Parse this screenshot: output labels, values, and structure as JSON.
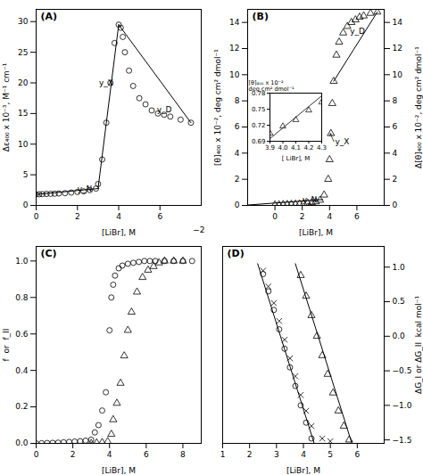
{
  "chart_data": [
    {
      "type": "scatter",
      "title": "(A)",
      "xlabel": "[LiBr], M",
      "ylabel": "Δε₄₀₀ x 10⁻³, M⁻¹ cm⁻¹",
      "xlim": [
        0,
        8
      ],
      "ylim": [
        0,
        32
      ],
      "xticks": [
        0,
        2,
        4,
        6
      ],
      "yticks": [
        0,
        5,
        10,
        15,
        20,
        25,
        30
      ],
      "series": [
        {
          "type": "scatter",
          "marker": "circle",
          "x": [
            0.0,
            0.15,
            0.3,
            0.5,
            0.7,
            0.9,
            1.1,
            1.4,
            1.7,
            2.0,
            2.3,
            2.6,
            2.9,
            3.0,
            3.2,
            3.4,
            3.6,
            3.8,
            4.0,
            4.1,
            4.2,
            4.3,
            4.5,
            4.7,
            5.0,
            5.3,
            5.6,
            5.9,
            6.2,
            6.5,
            7.0,
            7.5
          ],
          "values": [
            1.8,
            1.82,
            1.85,
            1.88,
            1.9,
            1.92,
            1.95,
            2.0,
            2.1,
            2.2,
            2.3,
            2.5,
            2.75,
            3.5,
            7.5,
            13.5,
            20.0,
            26.5,
            29.5,
            29.0,
            27.5,
            25.0,
            22.0,
            19.5,
            17.5,
            16.5,
            15.5,
            15.0,
            14.8,
            14.5,
            14.0,
            13.5
          ]
        },
        {
          "type": "line",
          "x": [
            0.0,
            3.0
          ],
          "values": [
            1.8,
            2.75
          ]
        },
        {
          "type": "line",
          "x": [
            3.0,
            4.0
          ],
          "values": [
            2.75,
            29.5
          ]
        },
        {
          "type": "line",
          "x": [
            4.0,
            7.5
          ],
          "values": [
            29.5,
            13.5
          ]
        }
      ],
      "annotations": [
        {
          "text": "y_N",
          "x": 2.0,
          "y": 2.3
        },
        {
          "text": "y_X",
          "x": 3.05,
          "y": 19.5
        },
        {
          "text": "y_D",
          "x": 5.85,
          "y": 15.2
        },
        {
          "text": "−2",
          "x": 7.6,
          "y": -4.5
        }
      ]
    },
    {
      "type": "scatter",
      "title": "(B)",
      "xlabel": "[LiBr], M",
      "ylabel": "[θ]₄₀₀ x 10⁻², deg cm² dmol⁻¹",
      "y2label": "Δ[θ]₄₀₀ x 10⁻², deg cm² dmol⁻¹",
      "xlim": [
        -2,
        8
      ],
      "ylim": [
        0,
        15
      ],
      "xticks": [
        0,
        2,
        4,
        6
      ],
      "yticks": [
        0,
        2,
        4,
        6,
        8,
        10,
        12,
        14
      ],
      "y2lim": [
        0,
        15
      ],
      "y2ticks": [
        0,
        2,
        4,
        6,
        8,
        10,
        12,
        14
      ],
      "series": [
        {
          "type": "scatter",
          "marker": "triangle",
          "x": [
            0.0,
            0.3,
            0.6,
            0.9,
            1.2,
            1.5,
            1.8,
            2.1,
            2.4,
            2.7,
            3.0,
            3.3,
            3.6,
            3.9,
            4.0,
            4.1,
            4.2,
            4.3,
            4.5,
            4.7,
            5.0,
            5.3,
            5.6,
            5.9,
            6.2,
            6.5,
            7.0,
            7.5
          ],
          "values": [
            0.05,
            0.05,
            0.07,
            0.08,
            0.09,
            0.1,
            0.12,
            0.14,
            0.18,
            0.22,
            0.28,
            0.4,
            0.8,
            2.0,
            3.5,
            5.5,
            7.8,
            9.5,
            11.5,
            12.5,
            13.2,
            13.7,
            14.0,
            14.2,
            14.4,
            14.5,
            14.7,
            14.8
          ]
        },
        {
          "type": "line",
          "x": [
            -2,
            3.5
          ],
          "values": [
            0.03,
            0.45
          ]
        },
        {
          "type": "line",
          "x": [
            4.3,
            7.5
          ],
          "values": [
            9.5,
            14.8
          ]
        }
      ],
      "annotations": [
        {
          "text": "y_N",
          "x": 2.0,
          "y": 0.25
        },
        {
          "text": "y_D",
          "x": 5.5,
          "y": 13.1
        },
        {
          "text": "y_X",
          "x": 4.4,
          "y": 4.7,
          "arrow_x": 4.05,
          "arrow_y": 5.5
        }
      ],
      "inset": {
        "type": "scatter",
        "xlabel": "[ LiBr], M",
        "ylabel": "[θ]₄₀₀ x 10⁻²\ndeg cm² dmol⁻¹",
        "xlim": [
          3.9,
          4.3
        ],
        "ylim": [
          0.69,
          0.78
        ],
        "xticks": [
          3.9,
          {
            "value": 4.0,
            "label": "4.0"
          },
          4.1,
          4.2,
          4.3
        ],
        "yticks": [
          0.69,
          0.72,
          0.75,
          0.78
        ],
        "series": [
          {
            "type": "scatter",
            "marker": "triangle",
            "x": [
              3.9,
              4.0,
              4.1,
              4.2,
              4.3
            ],
            "values": [
              0.705,
              0.718,
              0.73,
              0.748,
              0.763
            ]
          },
          {
            "type": "line",
            "x": [
              3.9,
              4.3
            ],
            "values": [
              0.695,
              0.775
            ]
          }
        ]
      }
    },
    {
      "type": "scatter",
      "title": "(C)",
      "xlabel": "[LiBr], M",
      "ylabel": "f  or  f_II",
      "xlim": [
        0,
        9
      ],
      "ylim": [
        0,
        1.08
      ],
      "xticks": [
        0,
        2,
        4,
        6,
        8
      ],
      "yticks": [
        {
          "value": 0.0,
          "label": "0.0"
        },
        0.2,
        0.4,
        0.6,
        0.8,
        {
          "value": 1.0,
          "label": "1.0"
        }
      ],
      "series": [
        {
          "type": "scatter",
          "marker": "circle",
          "x": [
            0.0,
            0.3,
            0.6,
            0.9,
            1.2,
            1.5,
            1.8,
            2.1,
            2.4,
            2.7,
            3.0,
            3.2,
            3.4,
            3.6,
            3.8,
            4.0,
            4.1,
            4.2,
            4.3,
            4.5,
            4.7,
            5.0,
            5.3,
            5.6,
            5.9,
            6.2,
            6.5,
            7.0,
            7.5,
            8.0,
            8.5
          ],
          "values": [
            0.0,
            0.001,
            0.002,
            0.003,
            0.004,
            0.006,
            0.008,
            0.01,
            0.012,
            0.015,
            0.02,
            0.06,
            0.1,
            0.18,
            0.28,
            0.62,
            0.8,
            0.87,
            0.92,
            0.96,
            0.975,
            0.985,
            0.99,
            0.995,
            1.0,
            1.0,
            1.0,
            1.0,
            1.0,
            1.0,
            1.0
          ]
        },
        {
          "type": "scatter",
          "marker": "triangle",
          "x": [
            3.0,
            3.3,
            3.6,
            3.9,
            4.1,
            4.2,
            4.4,
            4.6,
            4.8,
            5.0,
            5.2,
            5.5,
            5.8,
            6.1,
            6.4,
            6.7,
            7.0,
            7.5,
            8.0
          ],
          "values": [
            0.0,
            0.003,
            0.005,
            0.01,
            0.05,
            0.13,
            0.22,
            0.33,
            0.48,
            0.62,
            0.72,
            0.83,
            0.91,
            0.95,
            0.97,
            0.99,
            1.0,
            1.0,
            1.0
          ]
        }
      ]
    },
    {
      "type": "scatter",
      "title": "(D)",
      "xlabel": "[LiBr], M",
      "y2label": "ΔG_I or ΔG_II  kcal mol⁻¹",
      "xlim": [
        1,
        7
      ],
      "ylim": [
        -1.55,
        1.3
      ],
      "xticks": [
        1,
        2,
        3,
        4,
        5,
        6
      ],
      "yticks": [],
      "y2lim": [
        -1.55,
        1.3
      ],
      "y2ticks": [
        {
          "value": -1.5,
          "label": "−1.5"
        },
        {
          "value": -1.0,
          "label": "−1.0"
        },
        {
          "value": -0.5,
          "label": "−0.5"
        },
        {
          "value": 0.0,
          "label": "0.0"
        },
        0.5,
        {
          "value": 1.0,
          "label": "1.0"
        }
      ],
      "series": [
        {
          "type": "scatter",
          "marker": "circle",
          "x": [
            2.5,
            2.7,
            2.9,
            3.1,
            3.3,
            3.5,
            3.7,
            3.9,
            4.1,
            4.3
          ],
          "values": [
            0.9,
            0.65,
            0.38,
            0.1,
            -0.18,
            -0.45,
            -0.72,
            -1.0,
            -1.25,
            -1.48
          ]
        },
        {
          "type": "line",
          "x": [
            2.3,
            4.4
          ],
          "values": [
            1.05,
            -1.55
          ]
        },
        {
          "type": "scatter",
          "marker": "triangle",
          "x": [
            3.9,
            4.1,
            4.3,
            4.5,
            4.7,
            4.9,
            5.1,
            5.3,
            5.5,
            5.7
          ],
          "values": [
            0.88,
            0.58,
            0.3,
            0.0,
            -0.28,
            -0.55,
            -0.82,
            -1.08,
            -1.3,
            -1.5
          ]
        },
        {
          "type": "line",
          "x": [
            3.7,
            5.8
          ],
          "values": [
            1.05,
            -1.55
          ]
        },
        {
          "type": "scatter",
          "marker": "x",
          "x": [
            2.5,
            2.7,
            2.9,
            3.1,
            3.3,
            3.5,
            3.7,
            3.9,
            4.1,
            4.3,
            4.7,
            5.0
          ],
          "values": [
            0.95,
            0.72,
            0.48,
            0.22,
            -0.05,
            -0.32,
            -0.58,
            -0.85,
            -1.08,
            -1.3,
            -1.48,
            -1.52
          ]
        }
      ]
    }
  ]
}
